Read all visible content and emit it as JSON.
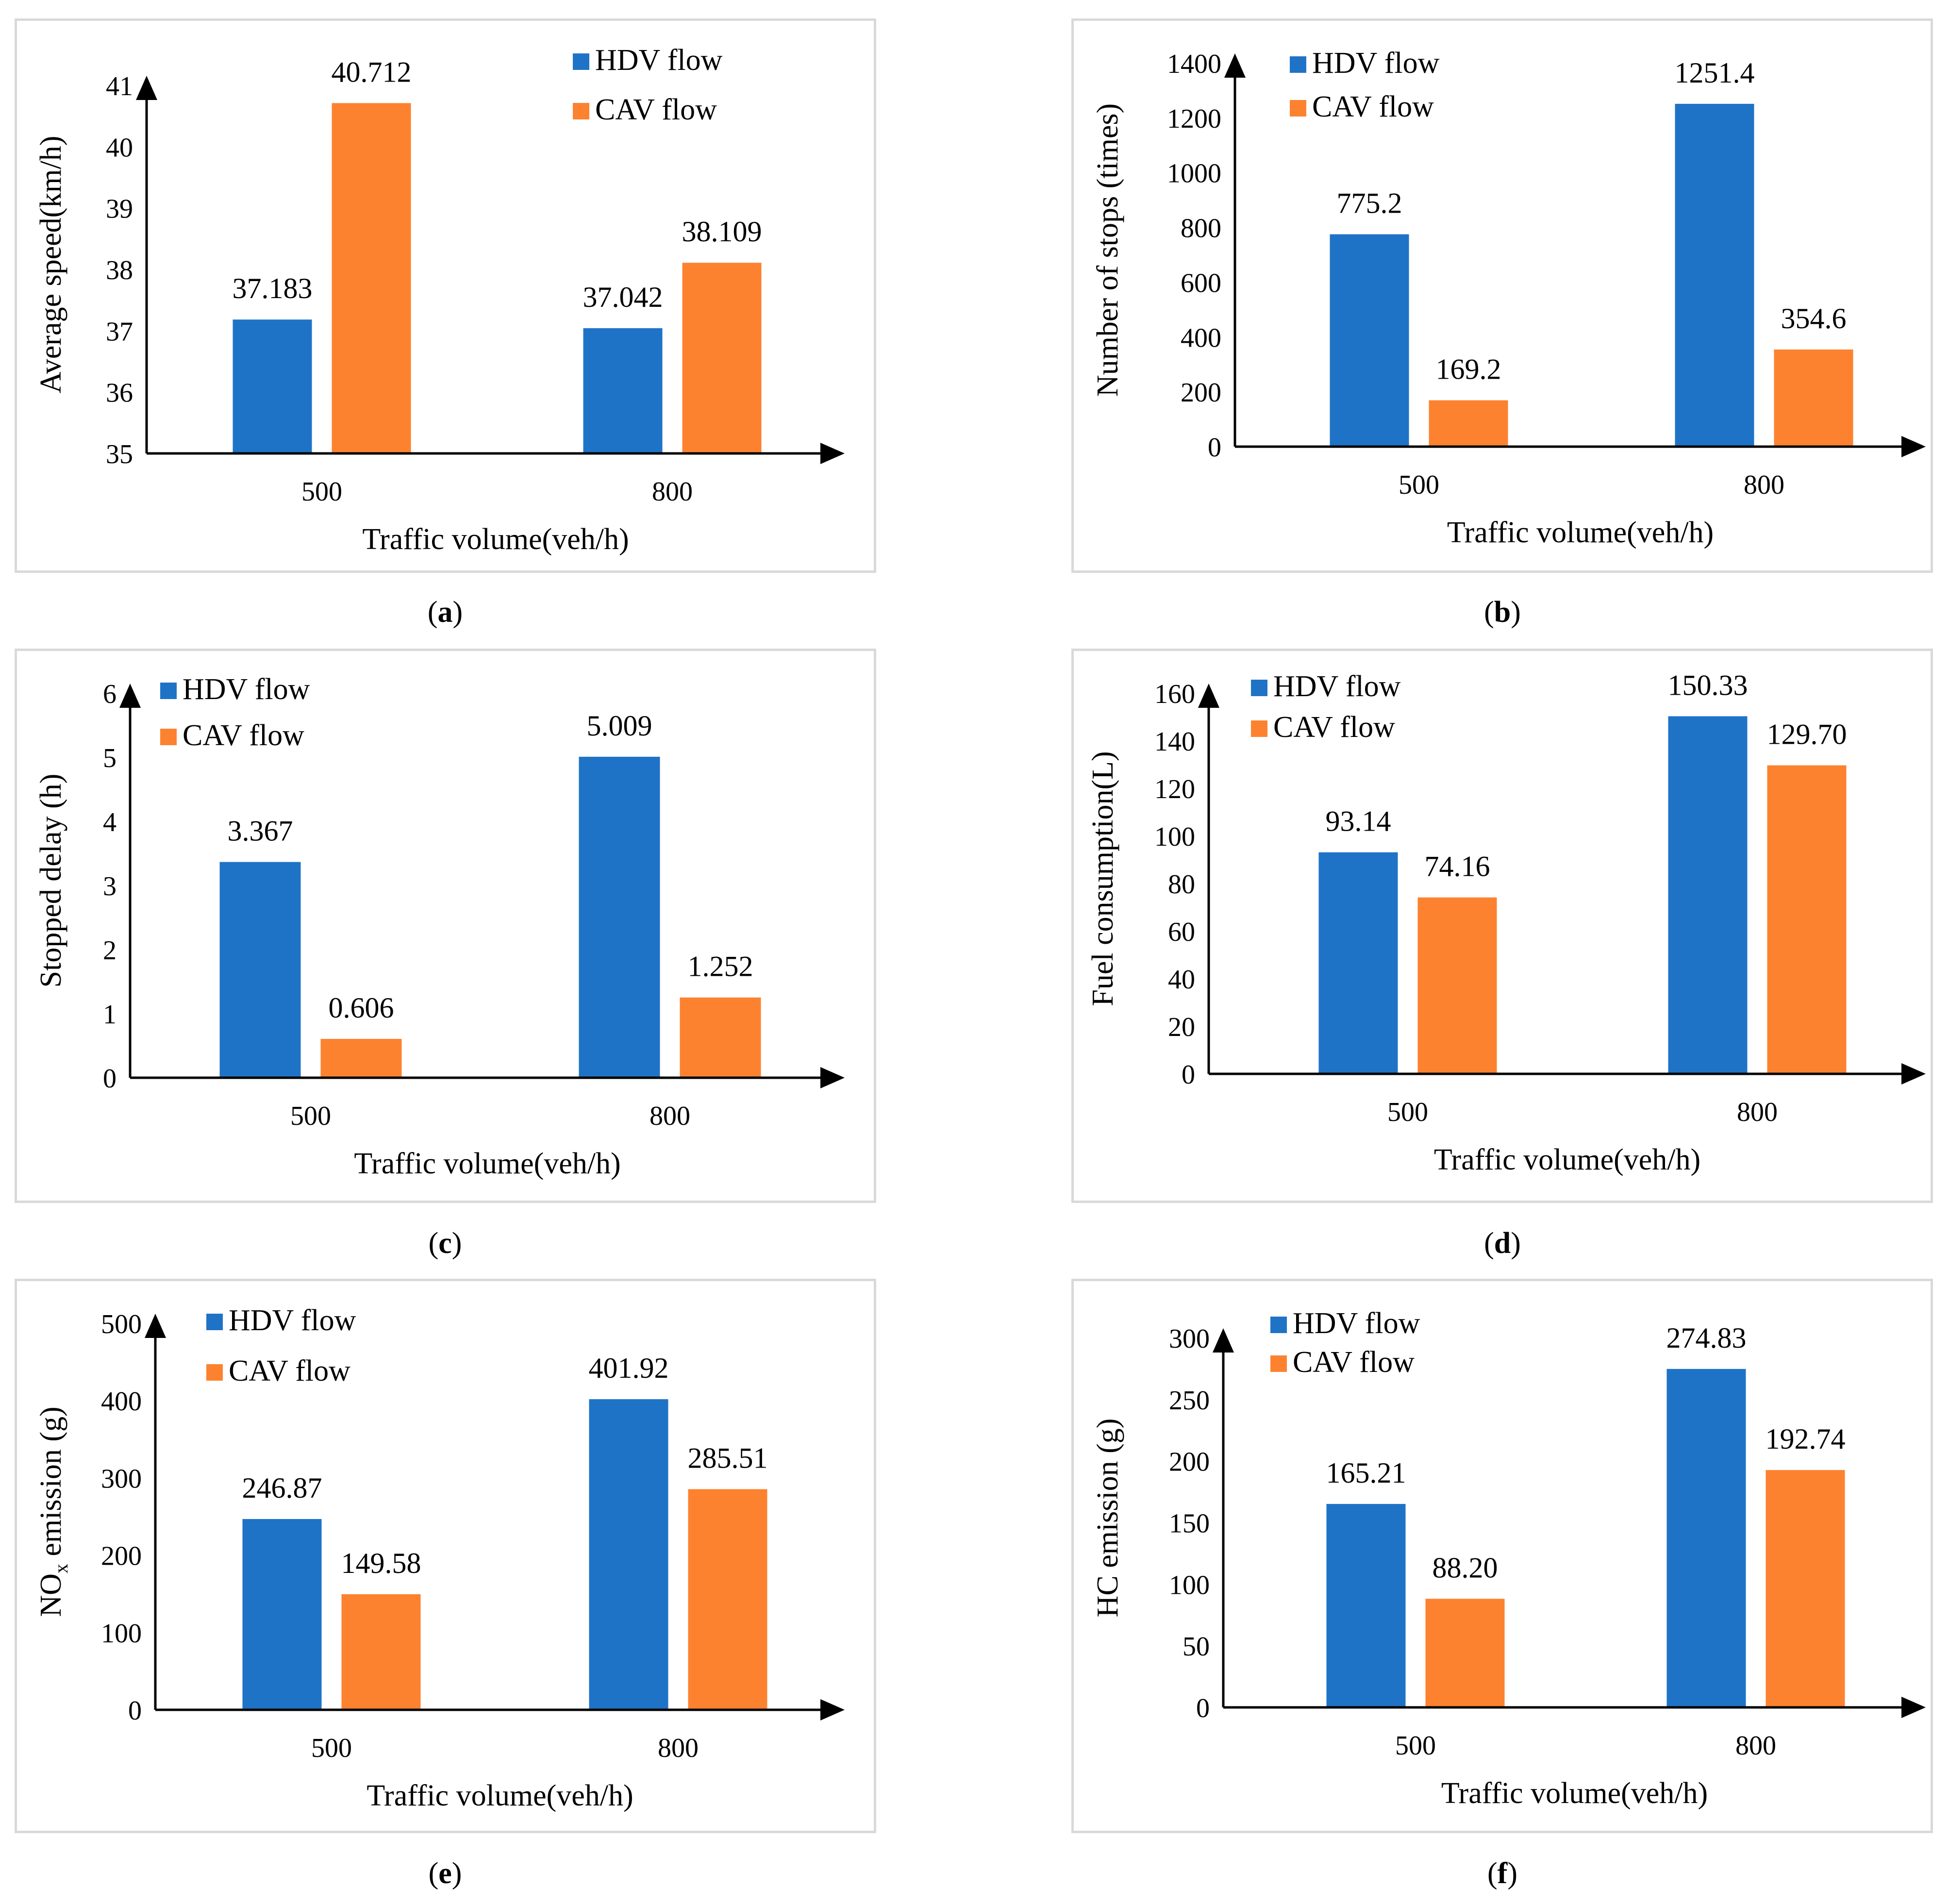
{
  "colors": {
    "hdv": "#1f73c7",
    "cav": "#fd8230",
    "axis": "#000000",
    "frame": "#d9d9d9"
  },
  "chart_data": [
    {
      "id": "a",
      "type": "bar",
      "caption": "a",
      "categories": [
        "500",
        "800"
      ],
      "series": [
        {
          "name": "HDV flow",
          "values": [
            37.183,
            37.042
          ],
          "labels": [
            "37.183",
            "37.042"
          ]
        },
        {
          "name": "CAV flow",
          "values": [
            40.712,
            38.109
          ],
          "labels": [
            "40.712",
            "38.109"
          ]
        }
      ],
      "yticks": [
        "35",
        "36",
        "37",
        "38",
        "39",
        "40",
        "41"
      ],
      "ylim": [
        35,
        41
      ],
      "xlabel": "Traffic volume(veh/h)",
      "ylabel": "Average speed(km/h)",
      "legend_position": "top-right"
    },
    {
      "id": "b",
      "type": "bar",
      "caption": "b",
      "categories": [
        "500",
        "800"
      ],
      "series": [
        {
          "name": "HDV flow",
          "values": [
            775.2,
            1251.4
          ],
          "labels": [
            "775.2",
            "1251.4"
          ]
        },
        {
          "name": "CAV flow",
          "values": [
            169.2,
            354.6
          ],
          "labels": [
            "169.2",
            "354.6"
          ]
        }
      ],
      "yticks": [
        "0",
        "200",
        "400",
        "600",
        "800",
        "1000",
        "1200",
        "1400"
      ],
      "ylim": [
        0,
        1400
      ],
      "xlabel": "Traffic volume(veh/h)",
      "ylabel": "Number of stops (times)",
      "legend_position": "top-left"
    },
    {
      "id": "c",
      "type": "bar",
      "caption": "c",
      "categories": [
        "500",
        "800"
      ],
      "series": [
        {
          "name": "HDV flow",
          "values": [
            3.367,
            5.009
          ],
          "labels": [
            "3.367",
            "5.009"
          ]
        },
        {
          "name": "CAV flow",
          "values": [
            0.606,
            1.252
          ],
          "labels": [
            "0.606",
            "1.252"
          ]
        }
      ],
      "yticks": [
        "0",
        "1",
        "2",
        "3",
        "4",
        "5",
        "6"
      ],
      "ylim": [
        0,
        6
      ],
      "xlabel": "Traffic volume(veh/h)",
      "ylabel": "Stopped delay (h)",
      "legend_position": "top-left"
    },
    {
      "id": "d",
      "type": "bar",
      "caption": "d",
      "categories": [
        "500",
        "800"
      ],
      "series": [
        {
          "name": "HDV flow",
          "values": [
            93.14,
            150.33
          ],
          "labels": [
            "93.14",
            "150.33"
          ]
        },
        {
          "name": "CAV flow",
          "values": [
            74.16,
            129.7
          ],
          "labels": [
            "74.16",
            "129.70"
          ]
        }
      ],
      "yticks": [
        "0",
        "20",
        "40",
        "60",
        "80",
        "100",
        "120",
        "140",
        "160"
      ],
      "ylim": [
        0,
        160
      ],
      "xlabel": "Traffic volume(veh/h)",
      "ylabel": "Fuel consumption(L)",
      "legend_position": "top-left"
    },
    {
      "id": "e",
      "type": "bar",
      "caption": "e",
      "categories": [
        "500",
        "800"
      ],
      "series": [
        {
          "name": "HDV flow",
          "values": [
            246.87,
            401.92
          ],
          "labels": [
            "246.87",
            "401.92"
          ]
        },
        {
          "name": "CAV flow",
          "values": [
            149.58,
            285.51
          ],
          "labels": [
            "149.58",
            "285.51"
          ]
        }
      ],
      "yticks": [
        "0",
        "100",
        "200",
        "300",
        "400",
        "500"
      ],
      "ylim": [
        0,
        500
      ],
      "xlabel": "Traffic volume(veh/h)",
      "ylabel": "NO",
      "ylabel_sub": "x",
      "ylabel_tail": " emission (g)",
      "legend_position": "top-left"
    },
    {
      "id": "f",
      "type": "bar",
      "caption": "f",
      "categories": [
        "500",
        "800"
      ],
      "series": [
        {
          "name": "HDV flow",
          "values": [
            165.21,
            274.83
          ],
          "labels": [
            "165.21",
            "274.83"
          ]
        },
        {
          "name": "CAV flow",
          "values": [
            88.2,
            192.74
          ],
          "labels": [
            "88.20",
            "192.74"
          ]
        }
      ],
      "yticks": [
        "0",
        "50",
        "100",
        "150",
        "200",
        "250",
        "300"
      ],
      "ylim": [
        0,
        300
      ],
      "xlabel": "Traffic volume(veh/h)",
      "ylabel": "HC emission (g)",
      "legend_position": "top-left"
    }
  ]
}
